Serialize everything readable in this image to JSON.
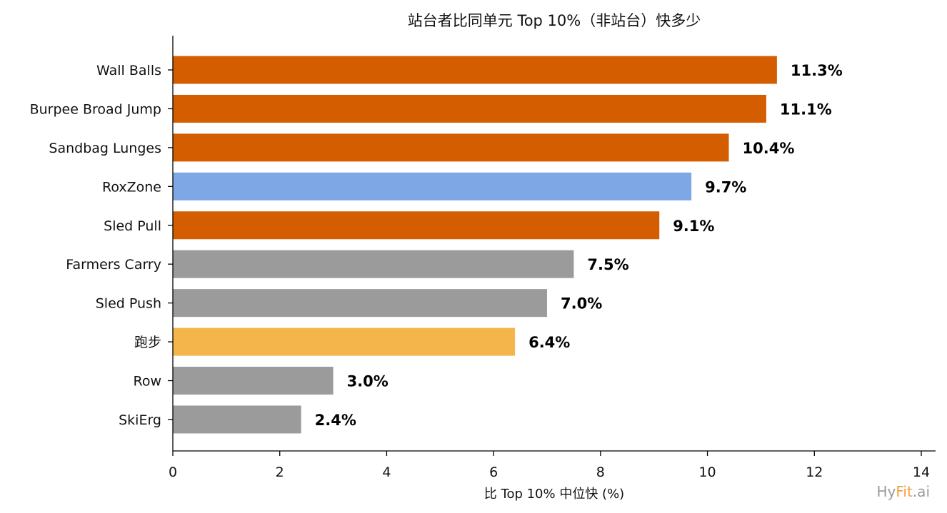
{
  "chart_data": {
    "type": "bar",
    "orientation": "horizontal",
    "title": "站台者比同单元 Top 10%（非站台）快多少",
    "xlabel": "比 Top 10% 中位快 (%)",
    "ylabel": "",
    "categories": [
      "Wall Balls",
      "Burpee Broad Jump",
      "Sandbag Lunges",
      "RoxZone",
      "Sled Pull",
      "Farmers Carry",
      "Sled Push",
      "跑步",
      "Row",
      "SkiErg"
    ],
    "values": [
      11.3,
      11.1,
      10.4,
      9.7,
      9.1,
      7.5,
      7.0,
      6.4,
      3.0,
      2.4
    ],
    "value_labels": [
      "11.3%",
      "11.1%",
      "10.4%",
      "9.7%",
      "9.1%",
      "7.5%",
      "7.0%",
      "6.4%",
      "3.0%",
      "2.4%"
    ],
    "bar_colors": [
      "#d45d00",
      "#d45d00",
      "#d45d00",
      "#7ea7e6",
      "#d45d00",
      "#9b9b9b",
      "#9b9b9b",
      "#f4b54b",
      "#9b9b9b",
      "#9b9b9b"
    ],
    "xlim": [
      0,
      14
    ],
    "xticks": [
      0,
      2,
      4,
      6,
      8,
      10,
      12,
      14
    ],
    "grid": false
  },
  "watermark": {
    "part1": "Hy",
    "part2": "Fit",
    "part3": ".ai"
  }
}
